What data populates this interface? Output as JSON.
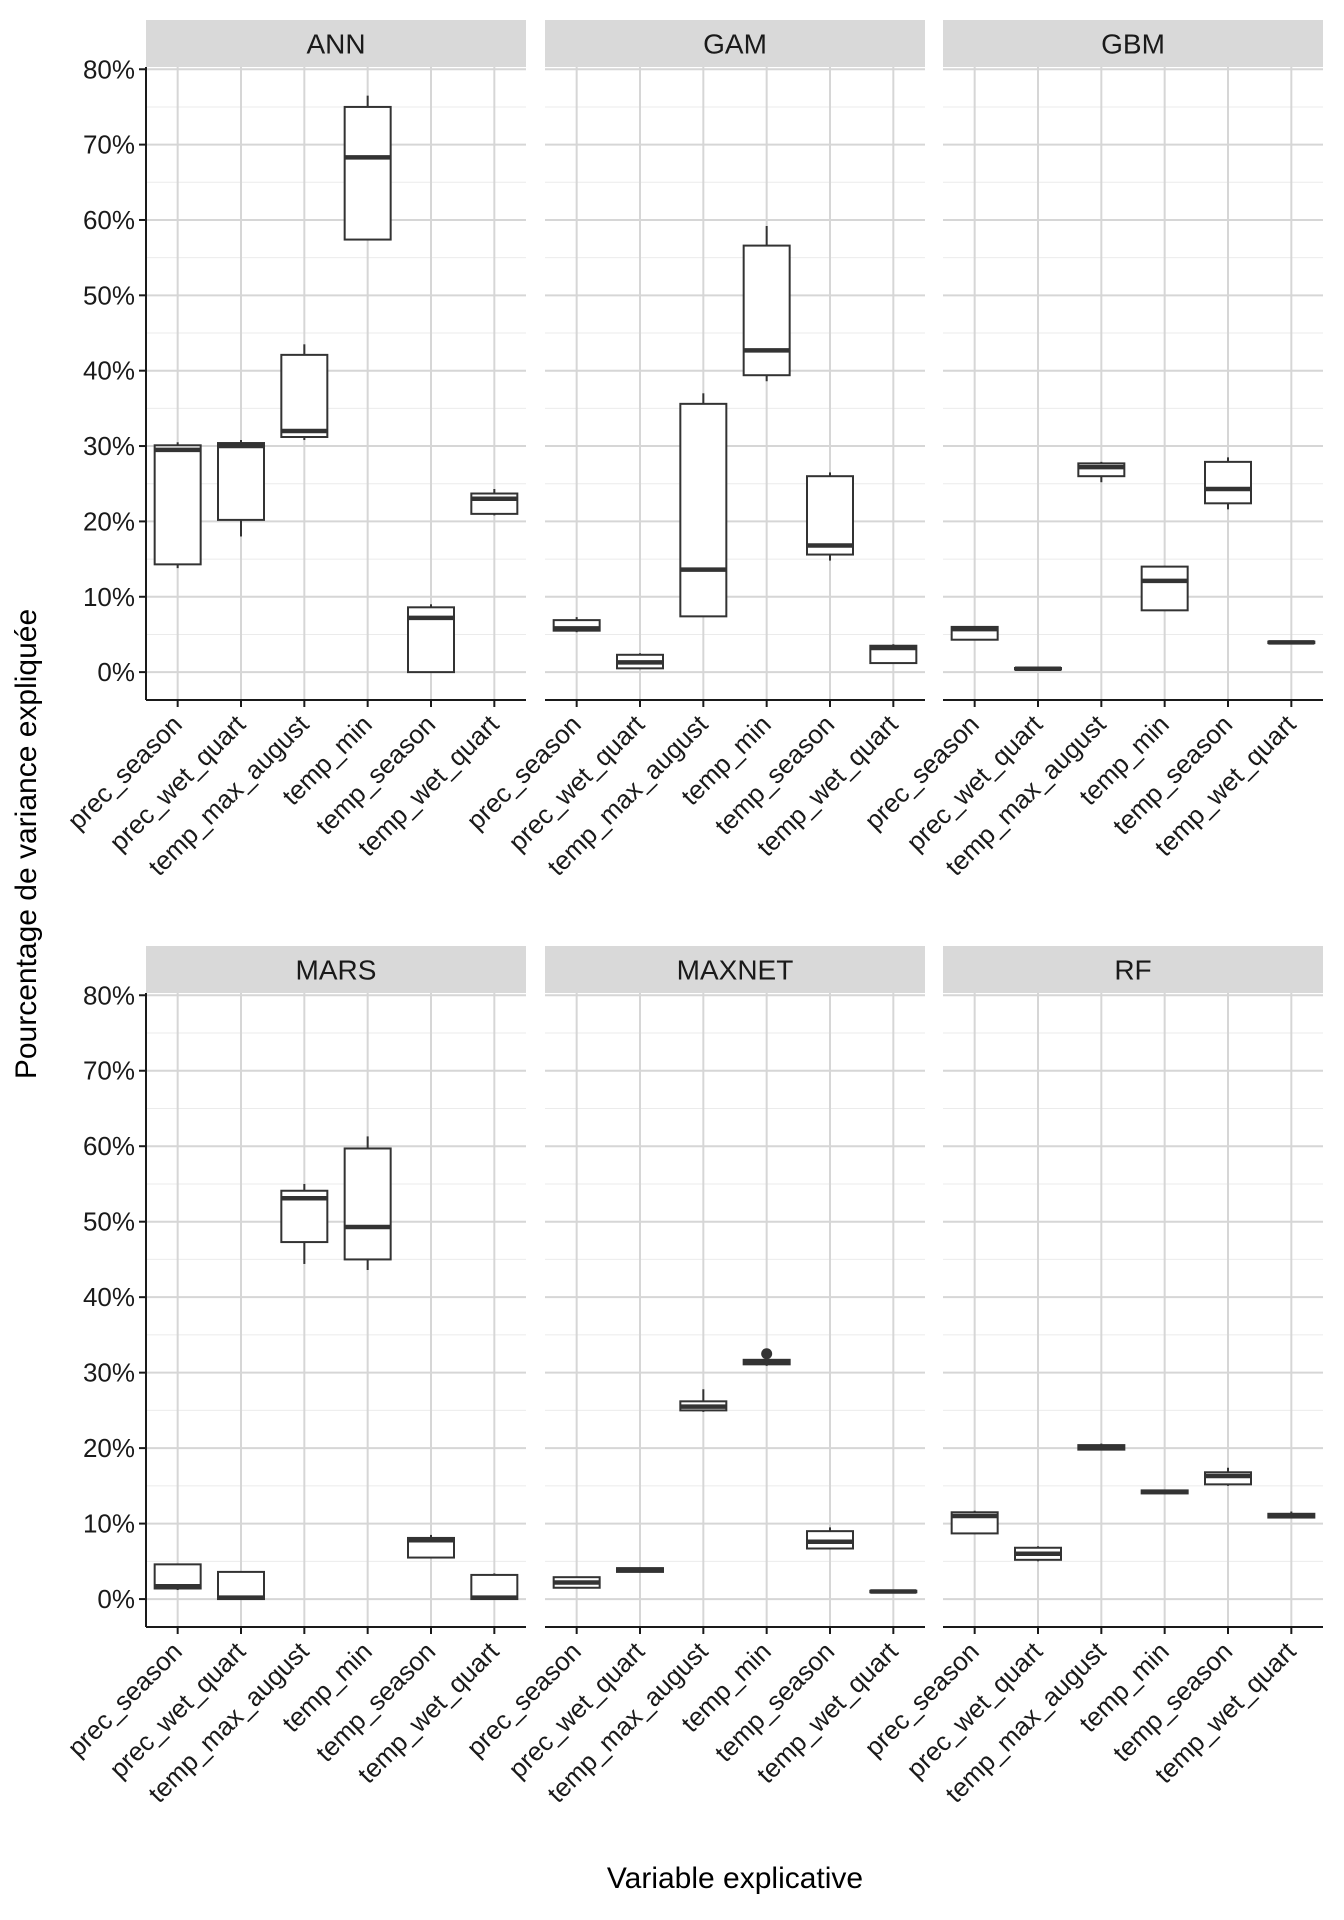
{
  "chart_data": {
    "type": "boxplot",
    "title": "",
    "xlabel": "Variable explicative",
    "ylabel": "Pourcentage de variance expliquée",
    "y_ticks": [
      "0%",
      "10%",
      "20%",
      "30%",
      "40%",
      "50%",
      "60%",
      "70%",
      "80%"
    ],
    "y_tick_values": [
      0,
      10,
      20,
      30,
      40,
      50,
      60,
      70,
      80
    ],
    "ylim": [
      -3.7,
      80.3
    ],
    "categories": [
      "prec_season",
      "prec_wet_quart",
      "temp_max_august",
      "temp_min",
      "temp_season",
      "temp_wet_quart"
    ],
    "panels": [
      {
        "name": "ANN",
        "boxes": [
          {
            "min": 13.8,
            "q1": 14.3,
            "median": 29.5,
            "q3": 30.1,
            "max": 30.5
          },
          {
            "min": 18.0,
            "q1": 20.2,
            "median": 30.0,
            "q3": 30.4,
            "max": 30.8
          },
          {
            "min": 30.8,
            "q1": 31.2,
            "median": 32.0,
            "q3": 42.1,
            "max": 43.5
          },
          {
            "min": 57.4,
            "q1": 57.4,
            "median": 68.3,
            "q3": 75.0,
            "max": 76.5
          },
          {
            "min": 0.0,
            "q1": 0.0,
            "median": 7.2,
            "q3": 8.6,
            "max": 9.0
          },
          {
            "min": 20.8,
            "q1": 21.0,
            "median": 23.0,
            "q3": 23.7,
            "max": 24.3
          }
        ]
      },
      {
        "name": "GAM",
        "boxes": [
          {
            "min": 5.3,
            "q1": 5.5,
            "median": 5.8,
            "q3": 6.9,
            "max": 7.3
          },
          {
            "min": 0.4,
            "q1": 0.5,
            "median": 1.3,
            "q3": 2.3,
            "max": 2.5
          },
          {
            "min": 7.4,
            "q1": 7.4,
            "median": 13.6,
            "q3": 35.6,
            "max": 37.0
          },
          {
            "min": 38.6,
            "q1": 39.4,
            "median": 42.7,
            "q3": 56.6,
            "max": 59.2
          },
          {
            "min": 14.8,
            "q1": 15.6,
            "median": 16.8,
            "q3": 26.0,
            "max": 26.5
          },
          {
            "min": 1.2,
            "q1": 1.2,
            "median": 3.2,
            "q3": 3.5,
            "max": 3.7
          }
        ]
      },
      {
        "name": "GBM",
        "boxes": [
          {
            "min": 4.2,
            "q1": 4.3,
            "median": 5.7,
            "q3": 6.0,
            "max": 6.1
          },
          {
            "min": 0.3,
            "q1": 0.35,
            "median": 0.45,
            "q3": 0.55,
            "max": 0.6
          },
          {
            "min": 25.2,
            "q1": 26.0,
            "median": 27.2,
            "q3": 27.7,
            "max": 27.9
          },
          {
            "min": 8.1,
            "q1": 8.2,
            "median": 12.1,
            "q3": 14.0,
            "max": 14.1
          },
          {
            "min": 21.6,
            "q1": 22.4,
            "median": 24.3,
            "q3": 27.9,
            "max": 28.5
          },
          {
            "min": 3.8,
            "q1": 3.85,
            "median": 3.95,
            "q3": 4.05,
            "max": 4.1
          }
        ]
      },
      {
        "name": "MARS",
        "boxes": [
          {
            "min": 1.2,
            "q1": 1.4,
            "median": 1.7,
            "q3": 4.6,
            "max": 4.7
          },
          {
            "min": 0.0,
            "q1": 0.0,
            "median": 0.2,
            "q3": 3.6,
            "max": 3.7
          },
          {
            "min": 44.4,
            "q1": 47.3,
            "median": 53.1,
            "q3": 54.1,
            "max": 55.0
          },
          {
            "min": 43.6,
            "q1": 45.0,
            "median": 49.3,
            "q3": 59.7,
            "max": 61.3
          },
          {
            "min": 5.4,
            "q1": 5.5,
            "median": 7.8,
            "q3": 8.1,
            "max": 8.5
          },
          {
            "min": 0.0,
            "q1": 0.0,
            "median": 0.2,
            "q3": 3.2,
            "max": 3.4
          }
        ]
      },
      {
        "name": "MAXNET",
        "boxes": [
          {
            "min": 1.4,
            "q1": 1.5,
            "median": 2.2,
            "q3": 2.9,
            "max": 3.0
          },
          {
            "min": 3.5,
            "q1": 3.6,
            "median": 3.9,
            "q3": 4.1,
            "max": 4.2
          },
          {
            "min": 24.8,
            "q1": 25.0,
            "median": 25.5,
            "q3": 26.2,
            "max": 27.8
          },
          {
            "min": 30.9,
            "q1": 31.1,
            "median": 31.4,
            "q3": 31.7,
            "max": 31.8,
            "outliers": [
              32.5
            ]
          },
          {
            "min": 6.6,
            "q1": 6.7,
            "median": 7.6,
            "q3": 9.0,
            "max": 9.5
          },
          {
            "min": 0.8,
            "q1": 0.9,
            "median": 1.0,
            "q3": 1.1,
            "max": 1.2
          }
        ]
      },
      {
        "name": "RF",
        "boxes": [
          {
            "min": 8.6,
            "q1": 8.7,
            "median": 11.0,
            "q3": 11.5,
            "max": 11.7
          },
          {
            "min": 5.0,
            "q1": 5.2,
            "median": 6.0,
            "q3": 6.8,
            "max": 7.0
          },
          {
            "min": 19.7,
            "q1": 19.8,
            "median": 20.1,
            "q3": 20.4,
            "max": 20.6
          },
          {
            "min": 13.9,
            "q1": 14.0,
            "median": 14.2,
            "q3": 14.4,
            "max": 14.5
          },
          {
            "min": 15.0,
            "q1": 15.2,
            "median": 16.3,
            "q3": 16.8,
            "max": 17.4
          },
          {
            "min": 10.7,
            "q1": 10.8,
            "median": 11.0,
            "q3": 11.3,
            "max": 11.6
          }
        ]
      }
    ]
  }
}
